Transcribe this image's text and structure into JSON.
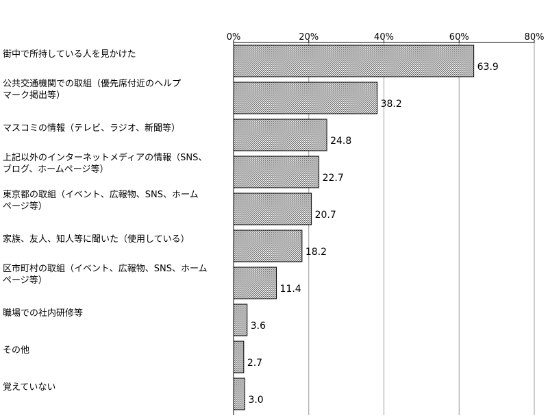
{
  "chart_data": {
    "type": "bar",
    "orientation": "horizontal",
    "categories": [
      "街中で所持している人を見かけた",
      "公共交通機関での取組（優先席付近のヘルプマーク掲出等）",
      "マスコミの情報（テレビ、ラジオ、新聞等）",
      "上記以外のインターネットメディアの情報（SNS、ブログ、ホームページ等）",
      "東京都の取組（イベント、広報物、SNS、ホームページ等）",
      "家族、友人、知人等に聞いた（使用している）",
      "区市町村の取組（イベント、広報物、SNS、ホームページ等）",
      "職場での社内研修等",
      "その他",
      "覚えていない"
    ],
    "category_lines": [
      [
        "街中で所持している人を見かけた"
      ],
      [
        "公共交通機関での取組（優先席付近のヘルプ",
        "マーク掲出等）"
      ],
      [
        "マスコミの情報（テレビ、ラジオ、新聞等）"
      ],
      [
        "上記以外のインターネットメディアの情報（SNS、",
        "ブログ、ホームページ等）"
      ],
      [
        "東京都の取組（イベント、広報物、SNS、ホーム",
        "ページ等）"
      ],
      [
        "家族、友人、知人等に聞いた（使用している）"
      ],
      [
        "区市町村の取組（イベント、広報物、SNS、ホーム",
        "ページ等）"
      ],
      [
        "職場での社内研修等"
      ],
      [
        "その他"
      ],
      [
        "覚えていない"
      ]
    ],
    "values": [
      63.9,
      38.2,
      24.8,
      22.7,
      20.7,
      18.2,
      11.4,
      3.6,
      2.7,
      3.0
    ],
    "value_labels": [
      "63.9",
      "38.2",
      "24.8",
      "22.7",
      "20.7",
      "18.2",
      "11.4",
      "3.6",
      "2.7",
      "3.0"
    ],
    "xlim": [
      0,
      80
    ],
    "x_ticks": [
      0,
      20,
      40,
      60,
      80
    ],
    "x_tick_labels": [
      "0%",
      "20%",
      "40%",
      "60%",
      "80%"
    ],
    "x_axis_position": "top",
    "grid": true,
    "legend": "none",
    "bar_pattern": "dotted",
    "colors": {
      "bar_fill": "#c8c8c8",
      "bar_stroke": "#000000",
      "grid": "#999999",
      "axis": "#000000"
    }
  }
}
